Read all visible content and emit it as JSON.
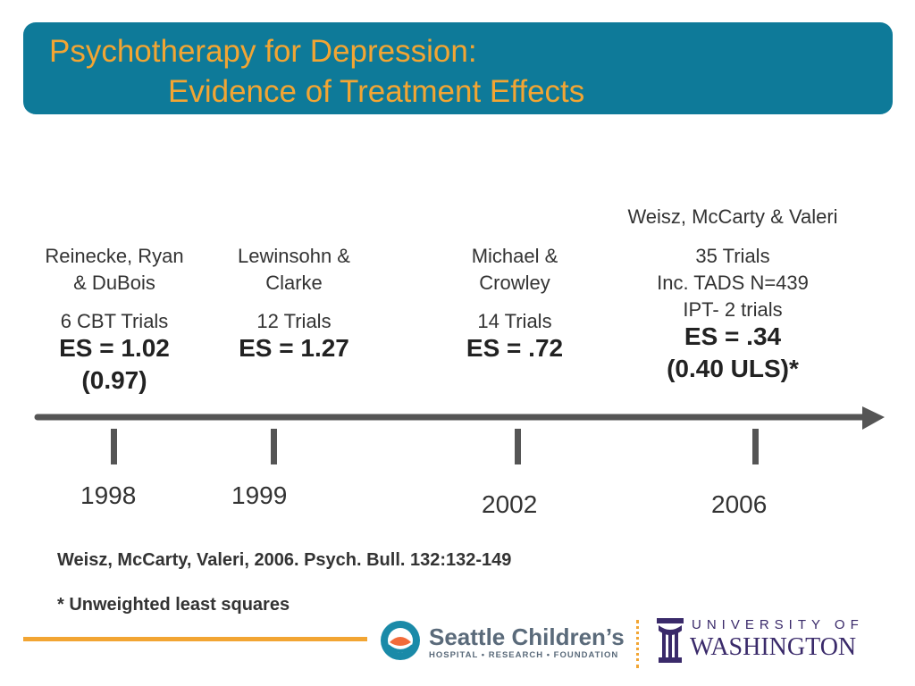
{
  "title": {
    "line1": "Psychotherapy for Depression:",
    "line2": "Evidence of Treatment Effects"
  },
  "studies": [
    {
      "authors_line1": "Reinecke, Ryan",
      "authors_line2": "& DuBois",
      "trials": "6 CBT Trials",
      "es_line1": "ES = 1.02",
      "es_line2": "(0.97)",
      "year": "1998"
    },
    {
      "authors_line1": "Lewinsohn &",
      "authors_line2": "Clarke",
      "trials": "12 Trials",
      "es_line1": "ES = 1.27",
      "year": "1999"
    },
    {
      "authors_line1": "Michael &",
      "authors_line2": "Crowley",
      "trials": "14 Trials",
      "es_line1": "ES = .72",
      "year": "2002"
    },
    {
      "authors_line1": "Weisz, McCarty & Valeri",
      "trials_line1": "35 Trials",
      "trials_line2": "Inc. TADS N=439",
      "trials_line3": "IPT- 2 trials",
      "es_line1": "ES = .34",
      "es_line2": "(0.40 ULS)*",
      "year": "2006"
    }
  ],
  "citation": "Weisz, McCarty, Valeri, 2006. Psych. Bull. 132:132-149",
  "footnote": "* Unweighted least squares",
  "logos": {
    "seattle_childrens": "Seattle Children’s",
    "seattle_childrens_sub": "HOSPITAL • RESEARCH • FOUNDATION",
    "uw_top": "UNIVERSITY OF",
    "uw_bottom": "WASHINGTON"
  },
  "colors": {
    "title_bar": "#0e7a99",
    "title_text": "#f2a533",
    "timeline": "#555555",
    "accent_line": "#f2a533"
  },
  "icons": [
    "seattle-childrens-logo-icon",
    "uw-logo-icon",
    "timeline-arrow-icon"
  ]
}
